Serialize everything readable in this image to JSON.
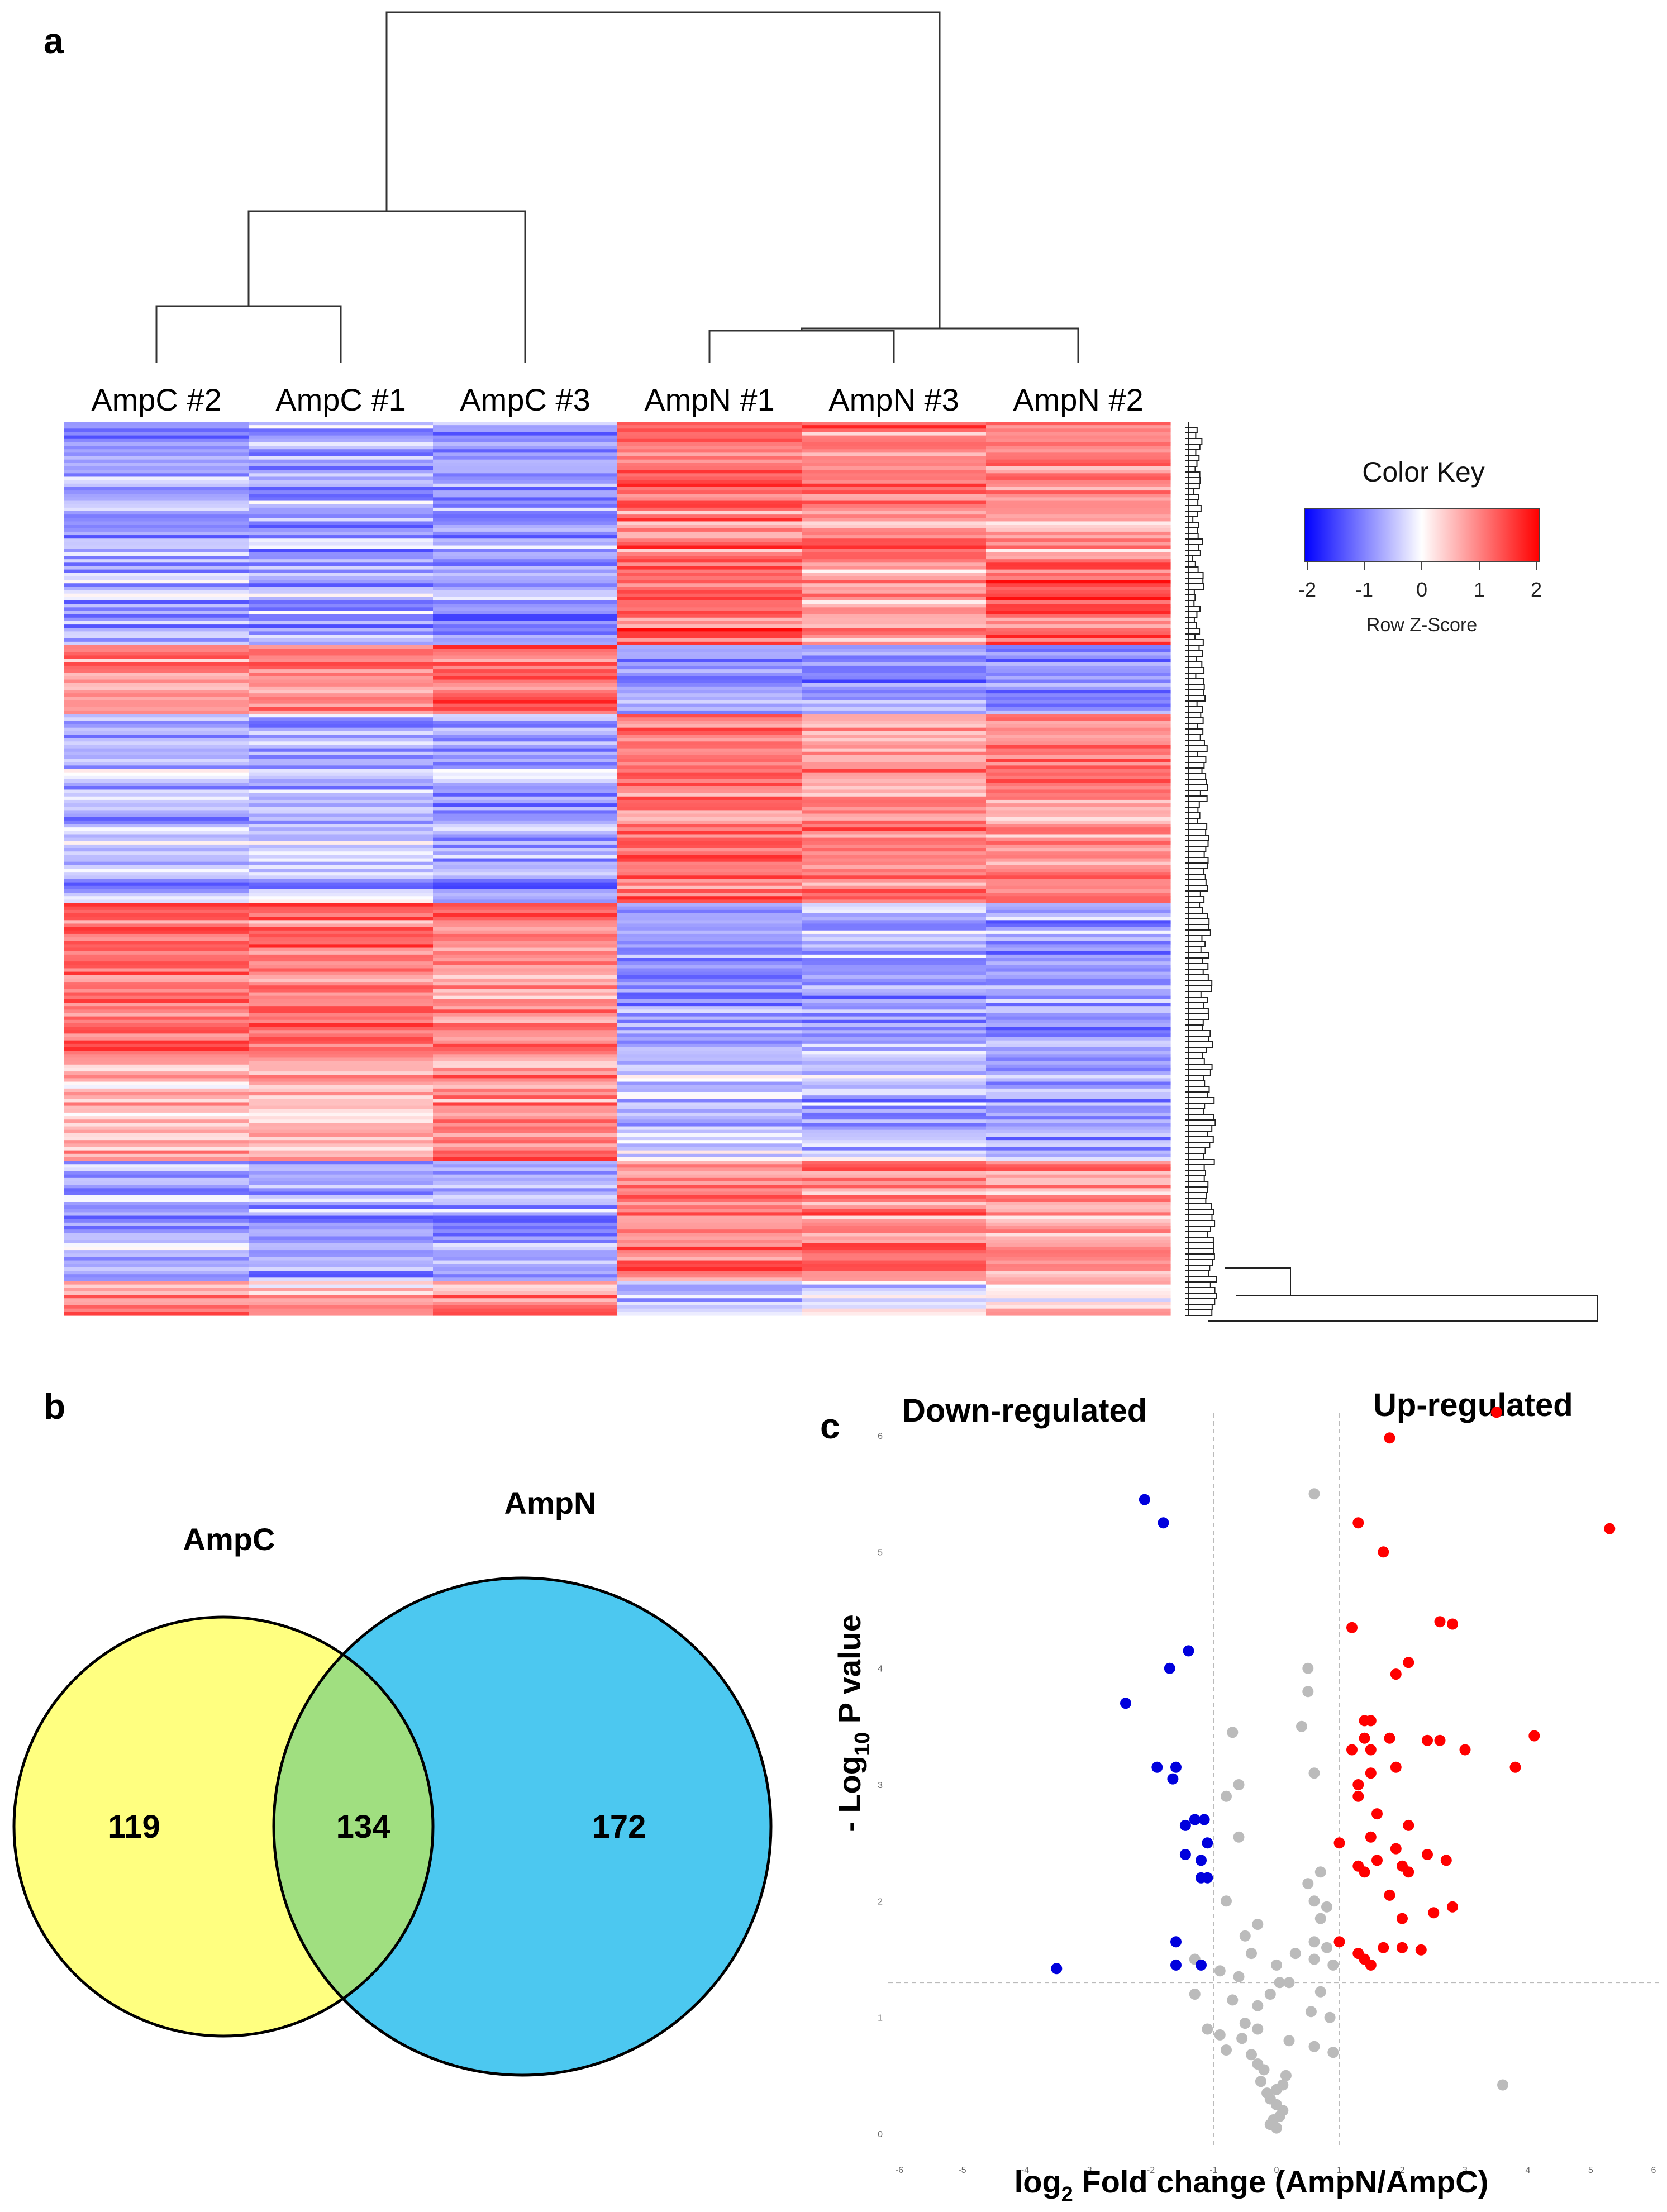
{
  "panels": {
    "a": "a",
    "b": "b",
    "c": "c"
  },
  "heatmap": {
    "samples": [
      "AmpC #2",
      "AmpC #1",
      "AmpC #3",
      "AmpN #1",
      "AmpN #3",
      "AmpN #2"
    ],
    "color_key": {
      "title": "Color Key",
      "ticks": [
        "-2",
        "-1",
        "0",
        "1",
        "2"
      ],
      "subtitle": "Row Z-Score",
      "low_color": "#0000ff",
      "mid_color": "#ffffff",
      "high_color": "#ff0000"
    }
  },
  "chart_data": [
    {
      "type": "heatmap",
      "title": "",
      "columns": [
        "AmpC #2",
        "AmpC #1",
        "AmpC #3",
        "AmpN #1",
        "AmpN #3",
        "AmpN #2"
      ],
      "value_range": [
        -2,
        2
      ],
      "value_label": "Row Z-Score",
      "block_pattern": [
        {
          "rows": 40,
          "values": [
            -0.7,
            -0.7,
            -0.8,
            1.1,
            1.0,
            0.9
          ]
        },
        {
          "rows": 25,
          "values": [
            -0.6,
            -0.7,
            -0.9,
            1.2,
            0.8,
            1.3
          ]
        },
        {
          "rows": 20,
          "values": [
            0.9,
            1.0,
            1.2,
            -0.7,
            -0.8,
            -0.8
          ]
        },
        {
          "rows": 25,
          "values": [
            -0.5,
            -0.6,
            -0.7,
            1.0,
            0.8,
            1.1
          ]
        },
        {
          "rows": 30,
          "values": [
            -0.6,
            -0.5,
            -0.8,
            1.1,
            1.0,
            0.9
          ]
        },
        {
          "rows": 45,
          "values": [
            1.1,
            1.0,
            0.9,
            -0.8,
            -0.7,
            -0.8
          ]
        },
        {
          "rows": 30,
          "values": [
            0.6,
            0.5,
            0.9,
            -0.5,
            -0.6,
            -0.7
          ]
        },
        {
          "rows": 35,
          "values": [
            -0.6,
            -0.7,
            -0.7,
            1.0,
            0.9,
            0.8
          ]
        },
        {
          "rows": 10,
          "values": [
            0.8,
            0.6,
            0.9,
            -0.5,
            -0.4,
            0.3
          ]
        }
      ]
    },
    {
      "type": "venn",
      "sets": [
        {
          "name": "AmpC",
          "only": 119,
          "color": "#ffff80"
        },
        {
          "name": "AmpN",
          "only": 172,
          "color": "#4cc8f0"
        }
      ],
      "intersection": 134,
      "intersection_color": "#a0df80"
    },
    {
      "type": "scatter",
      "title": "",
      "xlabel": "log2 Fold change (AmpN/AmpC)",
      "ylabel": "- Log10 P value",
      "xlim": [
        -6,
        6
      ],
      "ylim": [
        0,
        6
      ],
      "xticks": [
        -6,
        -5,
        -4,
        -3,
        -2,
        -1,
        0,
        1,
        2,
        3,
        4,
        5,
        6
      ],
      "yticks": [
        0,
        1,
        2,
        3,
        4,
        5,
        6
      ],
      "fc_threshold": [
        -1,
        1
      ],
      "p_threshold": 1.3,
      "annotations": [
        "Down-regulated",
        "Up-regulated"
      ],
      "series": [
        {
          "name": "down",
          "color": "#0000dd",
          "points": [
            [
              -2.1,
              5.45
            ],
            [
              -1.8,
              5.25
            ],
            [
              -1.4,
              4.15
            ],
            [
              -1.7,
              4.0
            ],
            [
              -2.4,
              3.7
            ],
            [
              -1.6,
              3.15
            ],
            [
              -1.9,
              3.15
            ],
            [
              -1.65,
              3.05
            ],
            [
              -1.3,
              2.7
            ],
            [
              -1.15,
              2.7
            ],
            [
              -1.45,
              2.65
            ],
            [
              -1.1,
              2.5
            ],
            [
              -1.2,
              2.35
            ],
            [
              -1.45,
              2.4
            ],
            [
              -1.1,
              2.2
            ],
            [
              -1.2,
              2.2
            ],
            [
              -1.6,
              1.65
            ],
            [
              -1.2,
              1.45
            ],
            [
              -1.6,
              1.45
            ],
            [
              -3.5,
              1.42
            ]
          ]
        },
        {
          "name": "up",
          "color": "#ff0000",
          "points": [
            [
              3.5,
              6.2
            ],
            [
              1.8,
              5.98
            ],
            [
              5.3,
              5.2
            ],
            [
              1.3,
              5.25
            ],
            [
              1.7,
              5.0
            ],
            [
              2.6,
              4.4
            ],
            [
              2.8,
              4.38
            ],
            [
              1.2,
              4.35
            ],
            [
              2.1,
              4.05
            ],
            [
              1.9,
              3.95
            ],
            [
              1.4,
              3.55
            ],
            [
              1.5,
              3.55
            ],
            [
              1.4,
              3.4
            ],
            [
              1.8,
              3.4
            ],
            [
              4.1,
              3.42
            ],
            [
              2.4,
              3.38
            ],
            [
              2.6,
              3.38
            ],
            [
              3.0,
              3.3
            ],
            [
              1.2,
              3.3
            ],
            [
              1.5,
              3.3
            ],
            [
              3.8,
              3.15
            ],
            [
              1.9,
              3.15
            ],
            [
              1.5,
              3.1
            ],
            [
              1.3,
              3.0
            ],
            [
              1.3,
              2.9
            ],
            [
              1.6,
              2.75
            ],
            [
              2.1,
              2.65
            ],
            [
              1.5,
              2.55
            ],
            [
              1.0,
              2.5
            ],
            [
              1.9,
              2.45
            ],
            [
              2.4,
              2.4
            ],
            [
              2.7,
              2.35
            ],
            [
              1.6,
              2.35
            ],
            [
              1.3,
              2.3
            ],
            [
              2.0,
              2.3
            ],
            [
              1.4,
              2.25
            ],
            [
              2.1,
              2.25
            ],
            [
              1.8,
              2.05
            ],
            [
              2.8,
              1.95
            ],
            [
              2.5,
              1.9
            ],
            [
              2.0,
              1.85
            ],
            [
              1.0,
              1.65
            ],
            [
              1.3,
              1.55
            ],
            [
              1.7,
              1.6
            ],
            [
              1.4,
              1.5
            ],
            [
              2.0,
              1.6
            ],
            [
              2.3,
              1.58
            ],
            [
              1.5,
              1.45
            ]
          ]
        },
        {
          "name": "not significant",
          "color": "#bbbbbb",
          "points": [
            [
              0.6,
              5.5
            ],
            [
              0.5,
              4.0
            ],
            [
              -0.7,
              3.45
            ],
            [
              -0.6,
              3.0
            ],
            [
              0.5,
              3.8
            ],
            [
              0.4,
              3.5
            ],
            [
              0.6,
              3.1
            ],
            [
              -0.8,
              2.9
            ],
            [
              -0.6,
              2.55
            ],
            [
              0.7,
              2.25
            ],
            [
              0.5,
              2.15
            ],
            [
              0.6,
              2.0
            ],
            [
              0.8,
              1.95
            ],
            [
              0.7,
              1.85
            ],
            [
              -0.8,
              2.0
            ],
            [
              -0.3,
              1.8
            ],
            [
              -0.5,
              1.7
            ],
            [
              0.6,
              1.65
            ],
            [
              0.8,
              1.6
            ],
            [
              -0.4,
              1.55
            ],
            [
              0.3,
              1.55
            ],
            [
              0.0,
              1.45
            ],
            [
              0.6,
              1.5
            ],
            [
              0.9,
              1.45
            ],
            [
              -0.9,
              1.4
            ],
            [
              -0.6,
              1.35
            ],
            [
              0.2,
              1.3
            ],
            [
              0.05,
              1.3
            ],
            [
              -0.1,
              1.2
            ],
            [
              0.7,
              1.22
            ],
            [
              -1.3,
              1.2
            ],
            [
              -0.7,
              1.15
            ],
            [
              -0.3,
              1.1
            ],
            [
              0.55,
              1.05
            ],
            [
              0.85,
              1.0
            ],
            [
              -0.5,
              0.95
            ],
            [
              -0.3,
              0.9
            ],
            [
              -1.1,
              0.9
            ],
            [
              -0.9,
              0.85
            ],
            [
              -0.55,
              0.82
            ],
            [
              0.2,
              0.8
            ],
            [
              0.6,
              0.75
            ],
            [
              -0.8,
              0.72
            ],
            [
              -0.4,
              0.68
            ],
            [
              -0.3,
              0.6
            ],
            [
              0.9,
              0.7
            ],
            [
              -0.2,
              0.55
            ],
            [
              0.15,
              0.5
            ],
            [
              -0.25,
              0.45
            ],
            [
              0.1,
              0.42
            ],
            [
              0.0,
              0.38
            ],
            [
              -0.1,
              0.3
            ],
            [
              0.0,
              0.25
            ],
            [
              0.1,
              0.2
            ],
            [
              0.05,
              0.15
            ],
            [
              -0.05,
              0.12
            ],
            [
              -0.1,
              0.08
            ],
            [
              0.0,
              0.05
            ],
            [
              3.6,
              0.42
            ],
            [
              -1.3,
              1.5
            ],
            [
              -0.15,
              0.35
            ]
          ]
        }
      ]
    }
  ]
}
